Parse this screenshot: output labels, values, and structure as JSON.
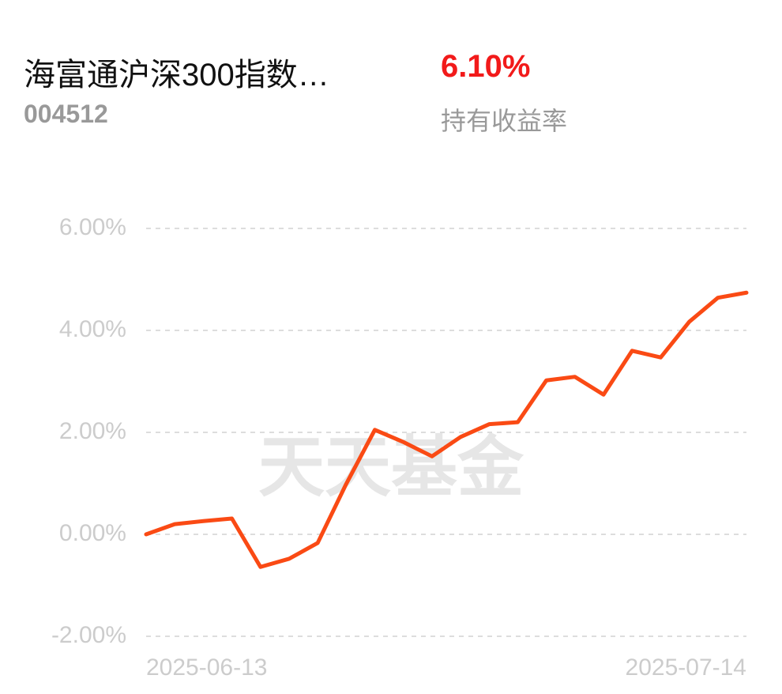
{
  "header": {
    "title": "海富通沪深300指数…",
    "code": "004512",
    "return_value": "6.10%",
    "return_label": "持有收益率"
  },
  "chart_data": {
    "type": "line",
    "watermark": "天天基金",
    "categories": [
      "2025-06-13",
      null,
      null,
      null,
      null,
      null,
      null,
      null,
      null,
      null,
      null,
      null,
      null,
      null,
      null,
      null,
      null,
      null,
      null,
      null,
      null,
      "2025-07-14"
    ],
    "series": [
      {
        "color": "#fa4a14",
        "values": [
          0.0,
          0.2,
          0.26,
          0.31,
          -0.64,
          -0.48,
          -0.17,
          0.99,
          2.05,
          1.81,
          1.53,
          1.91,
          2.16,
          2.2,
          3.02,
          3.09,
          2.74,
          3.6,
          3.47,
          4.17,
          4.64,
          4.74
        ]
      }
    ],
    "ylim": [
      -2,
      6
    ],
    "yticks": [
      {
        "value": -2,
        "label": "-2.00%"
      },
      {
        "value": 0,
        "label": "0.00%"
      },
      {
        "value": 2,
        "label": "2.00%"
      },
      {
        "value": 4,
        "label": "4.00%"
      },
      {
        "value": 6,
        "label": "6.00%"
      }
    ],
    "grid": true
  }
}
